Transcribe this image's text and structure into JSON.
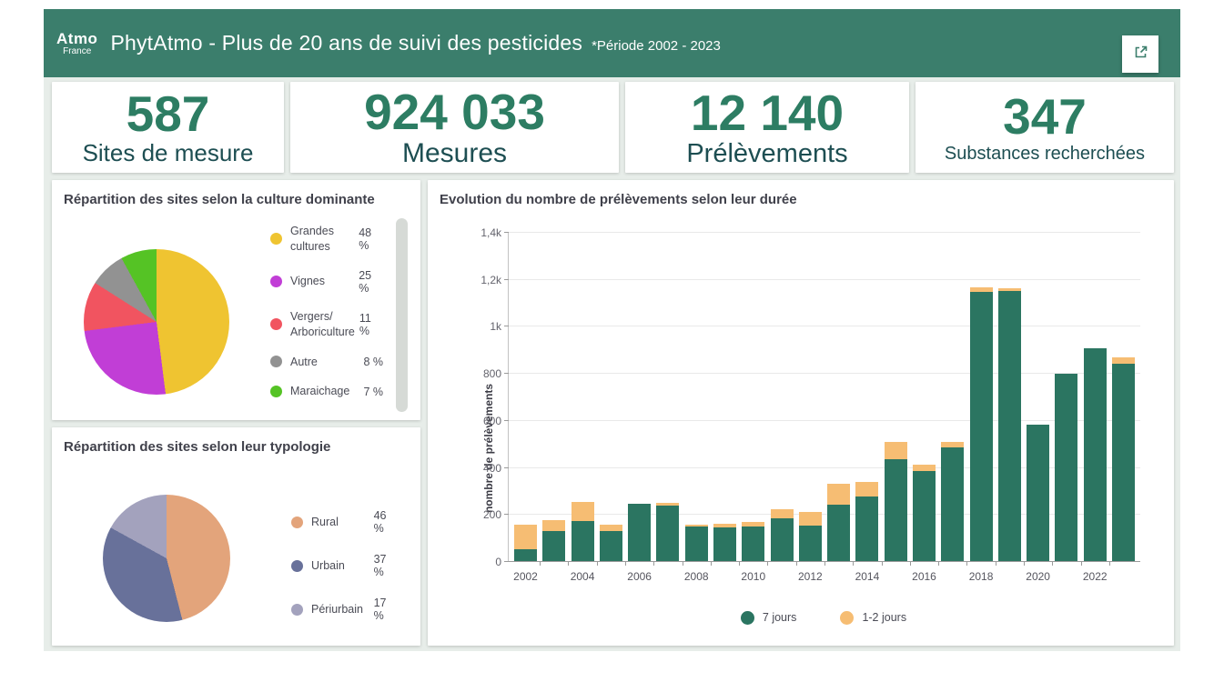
{
  "header": {
    "logo": {
      "line1": "Atmo",
      "line2": "France"
    },
    "title": "PhytAtmo - Plus de 20 ans de suivi des pesticides",
    "subtitle": "*Période 2002 - 2023",
    "export_icon": "open-external-icon"
  },
  "kpis": [
    {
      "value": "587",
      "label": "Sites de mesure"
    },
    {
      "value": "924 033",
      "label": "Mesures"
    },
    {
      "value": "12 140",
      "label": "Prélèvements"
    },
    {
      "value": "347",
      "label": "Substances recherchées"
    }
  ],
  "colors": {
    "header_bg": "#3b7e6c",
    "page_bg": "#e7ede9",
    "kpi_value": "#2d7d63",
    "kpi_label": "#1d4e52",
    "bar_7_jours": "#2b7561",
    "bar_1_2_jours": "#f6bd73"
  },
  "chart_data": [
    {
      "type": "pie",
      "title": "Répartition des sites selon la culture dominante",
      "labels": [
        "Grandes cultures",
        "Vignes",
        "Vergers/ Arboriculture",
        "Autre",
        "Maraichage"
      ],
      "values": [
        48,
        25,
        11,
        8,
        7
      ],
      "value_labels": [
        "48 %",
        "25 %",
        "11 %",
        "8 %",
        "7 %"
      ],
      "colors": [
        "#efc431",
        "#c13ed6",
        "#f15460",
        "#929292",
        "#55c325"
      ],
      "legend_position": "right",
      "start_angle": "top, clockwise"
    },
    {
      "type": "pie",
      "title": "Répartition des sites selon leur typologie",
      "labels": [
        "Rural",
        "Urbain",
        "Périurbain"
      ],
      "values": [
        46,
        37,
        17
      ],
      "value_labels": [
        "46 %",
        "37 %",
        "17 %"
      ],
      "colors": [
        "#e3a47b",
        "#68719a",
        "#a3a2bd"
      ],
      "legend_position": "right",
      "start_angle": "top, clockwise"
    },
    {
      "type": "bar",
      "stacked": true,
      "title": "Evolution du nombre de prélèvements selon leur durée",
      "categories": [
        2002,
        2003,
        2004,
        2005,
        2006,
        2007,
        2008,
        2009,
        2010,
        2011,
        2012,
        2013,
        2014,
        2015,
        2016,
        2017,
        2018,
        2019,
        2020,
        2021,
        2022,
        2023
      ],
      "series": [
        {
          "name": "7 jours",
          "color": "#2b7561",
          "values": [
            50,
            128,
            170,
            128,
            245,
            235,
            148,
            142,
            146,
            182,
            150,
            240,
            275,
            435,
            385,
            485,
            1145,
            1150,
            580,
            795,
            905,
            840
          ]
        },
        {
          "name": "1-2 jours",
          "color": "#f6bd73",
          "values": [
            105,
            45,
            80,
            25,
            0,
            12,
            8,
            18,
            20,
            38,
            60,
            90,
            60,
            70,
            25,
            20,
            20,
            10,
            0,
            0,
            0,
            25
          ]
        }
      ],
      "ylabel": "nombre de prélèvements",
      "ylim": [
        0,
        1400
      ],
      "ytick_step": 200,
      "ytick_labels": [
        "0",
        "200",
        "400",
        "600",
        "800",
        "1k",
        "1,2k",
        "1,4k"
      ],
      "xtick_labels": [
        "2002",
        "2004",
        "2006",
        "2008",
        "2010",
        "2012",
        "2014",
        "2016",
        "2018",
        "2020",
        "2022"
      ],
      "grid": true,
      "legend_position": "bottom"
    }
  ]
}
